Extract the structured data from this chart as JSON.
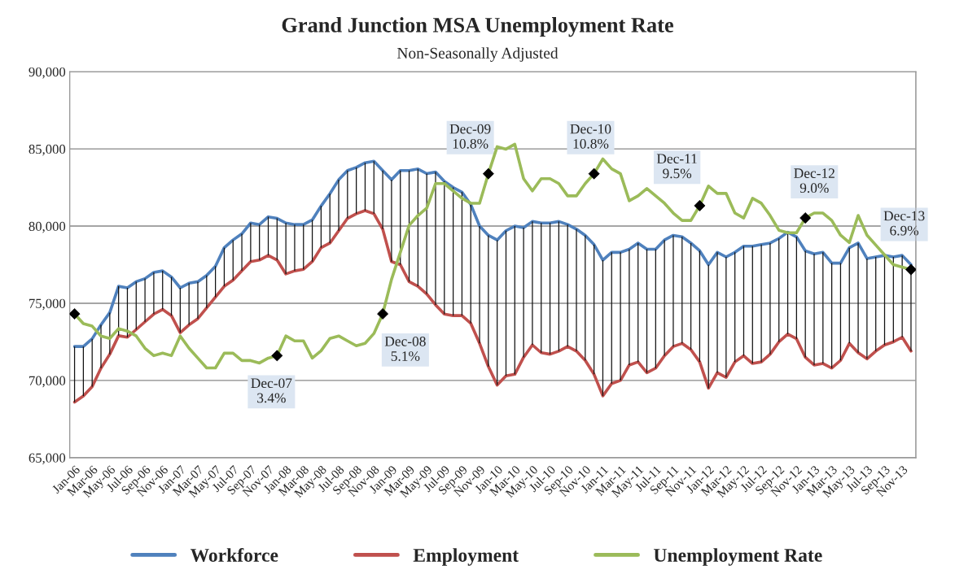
{
  "chart_data": {
    "type": "line",
    "title": "Grand Junction MSA Unemployment Rate",
    "subtitle": "Non-Seasonally Adjusted",
    "categories": [
      "Jan-06",
      null,
      "Mar-06",
      null,
      "May-06",
      null,
      "Jul-06",
      null,
      "Sep-06",
      null,
      "Nov-06",
      null,
      "Jan-07",
      null,
      "Mar-07",
      null,
      "May-07",
      null,
      "Jul-07",
      null,
      "Sep-07",
      null,
      "Nov-07",
      null,
      "Jan-08",
      null,
      "Mar-08",
      null,
      "May-08",
      null,
      "Jul-08",
      null,
      "Sep-08",
      null,
      "Nov-08",
      null,
      "Jan-09",
      null,
      "Mar-09",
      null,
      "May-09",
      null,
      "Jul-09",
      null,
      "Sep-09",
      null,
      "Nov-09",
      null,
      "Jan-10",
      null,
      "Mar-10",
      null,
      "May-10",
      null,
      "Jul-10",
      null,
      "Sep-10",
      null,
      "Nov-10",
      null,
      "Jan-11",
      null,
      "Mar-11",
      null,
      "May-11",
      null,
      "Jul-11",
      null,
      "Sep-11",
      null,
      "Nov-11",
      null,
      "Jan-12",
      null,
      "Mar-12",
      null,
      "May-12",
      null,
      "Jul-12",
      null,
      "Sep-12",
      null,
      "Nov-12",
      null,
      "Jan-13",
      null,
      "Mar-13",
      null,
      "May-13",
      null,
      "Jul-13",
      null,
      "Sep-13",
      null,
      "Nov-13",
      null
    ],
    "series": [
      {
        "name": "Workforce",
        "color": "#4f81bd",
        "values": [
          72200,
          72200,
          72700,
          73600,
          74400,
          76100,
          76000,
          76400,
          76600,
          77000,
          77100,
          76700,
          76000,
          76300,
          76400,
          76800,
          77400,
          78600,
          79100,
          79500,
          80200,
          80100,
          80600,
          80500,
          80200,
          80100,
          80100,
          80400,
          81300,
          82100,
          83000,
          83600,
          83800,
          84100,
          84200,
          83600,
          83000,
          83600,
          83600,
          83700,
          83400,
          83500,
          82900,
          82500,
          82200,
          81400,
          80000,
          79400,
          79100,
          79700,
          80000,
          79900,
          80300,
          80200,
          80200,
          80300,
          80100,
          79800,
          79400,
          78800,
          77800,
          78300,
          78300,
          78500,
          78900,
          78500,
          78500,
          79100,
          79400,
          79300,
          78900,
          78400,
          77500,
          78300,
          78000,
          78300,
          78700,
          78700,
          78800,
          78900,
          79200,
          79600,
          79300,
          78400,
          78200,
          78300,
          77600,
          77600,
          78600,
          78900,
          77900,
          78000,
          78100,
          78000,
          78100,
          77500
        ]
      },
      {
        "name": "Employment",
        "color": "#c0504d",
        "values": [
          68600,
          69000,
          69600,
          70800,
          71700,
          72900,
          72800,
          73300,
          73800,
          74300,
          74600,
          74200,
          73100,
          73600,
          74000,
          74700,
          75400,
          76100,
          76500,
          77100,
          77700,
          77800,
          78100,
          77800,
          76900,
          77100,
          77200,
          77700,
          78600,
          78900,
          79700,
          80500,
          80800,
          81000,
          80800,
          79800,
          77700,
          77500,
          76400,
          76100,
          75600,
          74900,
          74300,
          74200,
          74200,
          73700,
          72400,
          70900,
          69700,
          70300,
          70400,
          71500,
          72300,
          71800,
          71700,
          71900,
          72200,
          71900,
          71300,
          70400,
          69000,
          69800,
          70000,
          71000,
          71200,
          70500,
          70800,
          71600,
          72200,
          72400,
          72000,
          71200,
          69500,
          70500,
          70200,
          71200,
          71600,
          71100,
          71200,
          71700,
          72500,
          73000,
          72700,
          71500,
          71000,
          71100,
          70800,
          71300,
          72400,
          71800,
          71400,
          71900,
          72300,
          72500,
          72800,
          71900
        ],
        "errors": [
          [
            68600,
            72200
          ],
          [
            69000,
            72200
          ],
          [
            69600,
            72700
          ],
          [
            70800,
            73600
          ],
          [
            71700,
            74400
          ],
          [
            72900,
            76100
          ],
          [
            72800,
            76000
          ],
          [
            73300,
            76400
          ],
          [
            73800,
            76600
          ],
          [
            74300,
            77000
          ],
          [
            74600,
            77100
          ],
          [
            74200,
            76700
          ],
          [
            73100,
            76000
          ],
          [
            73600,
            76300
          ],
          [
            74000,
            76400
          ],
          [
            74700,
            76800
          ],
          [
            75400,
            77400
          ],
          [
            76100,
            78600
          ],
          [
            76500,
            79100
          ],
          [
            77100,
            79500
          ],
          [
            77700,
            80200
          ],
          [
            77800,
            80100
          ],
          [
            78100,
            80600
          ],
          [
            77800,
            80500
          ],
          [
            76900,
            80200
          ],
          [
            77100,
            80100
          ],
          [
            77200,
            80100
          ],
          [
            77700,
            80400
          ],
          [
            78600,
            81300
          ],
          [
            78900,
            82100
          ],
          [
            79700,
            83000
          ],
          [
            80500,
            83600
          ],
          [
            80800,
            83800
          ],
          [
            81000,
            84100
          ],
          [
            80800,
            84200
          ],
          [
            79800,
            83600
          ],
          [
            77700,
            83000
          ],
          [
            77500,
            83600
          ],
          [
            76400,
            83600
          ],
          [
            76100,
            83700
          ],
          [
            75600,
            83400
          ],
          [
            74900,
            83500
          ],
          [
            74300,
            82900
          ],
          [
            74200,
            82500
          ],
          [
            74200,
            82200
          ],
          [
            73700,
            81400
          ],
          [
            72400,
            80000
          ],
          [
            70900,
            79400
          ],
          [
            69700,
            79100
          ],
          [
            70300,
            79700
          ],
          [
            70400,
            80000
          ],
          [
            71500,
            79900
          ],
          [
            72300,
            80300
          ],
          [
            71800,
            80200
          ],
          [
            71700,
            80200
          ],
          [
            71900,
            80300
          ],
          [
            72200,
            80100
          ],
          [
            71900,
            79800
          ],
          [
            71300,
            79400
          ],
          [
            70400,
            78800
          ],
          [
            69000,
            77800
          ],
          [
            69800,
            78300
          ],
          [
            70000,
            78300
          ],
          [
            71000,
            78500
          ],
          [
            71200,
            78900
          ],
          [
            70500,
            78500
          ],
          [
            70800,
            78500
          ],
          [
            71600,
            79100
          ],
          [
            72200,
            79400
          ],
          [
            72400,
            79300
          ],
          [
            72000,
            78900
          ],
          [
            71200,
            78400
          ],
          [
            69500,
            77500
          ],
          [
            70500,
            78300
          ],
          [
            70200,
            78000
          ],
          [
            71200,
            78300
          ],
          [
            71600,
            78700
          ],
          [
            71100,
            78700
          ],
          [
            71200,
            78800
          ],
          [
            71700,
            78900
          ],
          [
            72500,
            79200
          ],
          [
            73000,
            79600
          ],
          [
            72700,
            79300
          ],
          [
            71500,
            78400
          ],
          [
            71000,
            78200
          ],
          [
            71100,
            78300
          ],
          [
            70800,
            77600
          ],
          [
            71300,
            77600
          ],
          [
            72400,
            78600
          ],
          [
            71800,
            78900
          ],
          [
            71400,
            77900
          ],
          [
            71900,
            78000
          ],
          [
            72300,
            78100
          ],
          [
            72500,
            78000
          ],
          [
            72800,
            78100
          ],
          [
            71900,
            77500
          ]
        ]
      },
      {
        "name": "Unemployment Rate",
        "color": "#9bbb59",
        "axis": "y2",
        "values": [
          5.1,
          4.7,
          4.6,
          4.2,
          4.1,
          4.5,
          4.4,
          4.2,
          3.7,
          3.4,
          3.5,
          3.4,
          4.2,
          3.7,
          3.3,
          2.9,
          2.9,
          3.5,
          3.5,
          3.2,
          3.2,
          3.1,
          3.3,
          3.4,
          4.2,
          4.0,
          4.0,
          3.3,
          3.6,
          4.1,
          4.2,
          4.0,
          3.8,
          3.9,
          4.3,
          5.1,
          6.5,
          7.6,
          8.7,
          9.1,
          9.4,
          10.4,
          10.4,
          10.1,
          9.8,
          9.6,
          9.6,
          10.8,
          11.9,
          11.8,
          12.0,
          10.6,
          10.1,
          10.6,
          10.6,
          10.4,
          9.9,
          9.9,
          10.4,
          10.8,
          11.4,
          11.0,
          10.8,
          9.7,
          9.9,
          10.2,
          9.9,
          9.6,
          9.2,
          8.9,
          8.9,
          9.5,
          10.3,
          10.0,
          10.0,
          9.2,
          9.0,
          9.8,
          9.6,
          9.1,
          8.5,
          8.4,
          8.4,
          9.0,
          9.2,
          9.2,
          8.9,
          8.3,
          8.0,
          9.1,
          8.3,
          7.9,
          7.5,
          7.1,
          7.0,
          6.9
        ]
      },
      {
        "type": "scatter",
        "color": "#000000",
        "axis": "y2",
        "marker": "diamond",
        "values": [
          5.1,
          null,
          null,
          null,
          null,
          null,
          null,
          null,
          null,
          null,
          null,
          null,
          null,
          null,
          null,
          null,
          null,
          null,
          null,
          null,
          null,
          null,
          null,
          3.4,
          null,
          null,
          null,
          null,
          null,
          null,
          null,
          null,
          null,
          null,
          null,
          5.1,
          null,
          null,
          null,
          null,
          null,
          null,
          null,
          null,
          null,
          null,
          null,
          10.8,
          null,
          null,
          null,
          null,
          null,
          null,
          null,
          null,
          null,
          null,
          null,
          10.8,
          null,
          null,
          null,
          null,
          null,
          null,
          null,
          null,
          null,
          null,
          null,
          9.5,
          null,
          null,
          null,
          null,
          null,
          null,
          null,
          null,
          null,
          null,
          null,
          9.0,
          null,
          null,
          null,
          null,
          null,
          null,
          null,
          null,
          null,
          null,
          null,
          6.9
        ],
        "value_labels": [
          null,
          null,
          null,
          null,
          null,
          null,
          null,
          null,
          null,
          null,
          null,
          null,
          null,
          null,
          null,
          null,
          null,
          null,
          null,
          null,
          null,
          null,
          null,
          "Dec-07\n3.4%",
          null,
          null,
          null,
          null,
          null,
          null,
          null,
          null,
          null,
          null,
          null,
          "Dec-08\n5.1%",
          null,
          null,
          null,
          null,
          null,
          null,
          null,
          null,
          null,
          null,
          null,
          "Dec-09\n10.8%",
          null,
          null,
          null,
          null,
          null,
          null,
          null,
          null,
          null,
          null,
          null,
          "Dec-10\n10.8%",
          null,
          null,
          null,
          null,
          null,
          null,
          null,
          null,
          null,
          null,
          null,
          "Dec-11\n9.5%",
          null,
          null,
          null,
          null,
          null,
          null,
          null,
          null,
          null,
          null,
          null,
          "Dec-12\n9.0%",
          null,
          null,
          null,
          null,
          null,
          null,
          null,
          null,
          null,
          null,
          null,
          "Dec-13\n6.9%"
        ]
      }
    ],
    "ylim": [
      65000,
      90000
    ],
    "yticks": [
      {
        "value": 65000,
        "label": "65,000"
      },
      {
        "value": 70000,
        "label": "70,000"
      },
      {
        "value": 75000,
        "label": "75,000"
      },
      {
        "value": 80000,
        "label": "80,000"
      },
      {
        "value": 85000,
        "label": "85,000"
      },
      {
        "value": 90000,
        "label": "90,000"
      }
    ],
    "y2lim": [
      -0.75,
      14.95
    ],
    "grid": "y",
    "legend": "bottom",
    "line_style": "solid"
  }
}
